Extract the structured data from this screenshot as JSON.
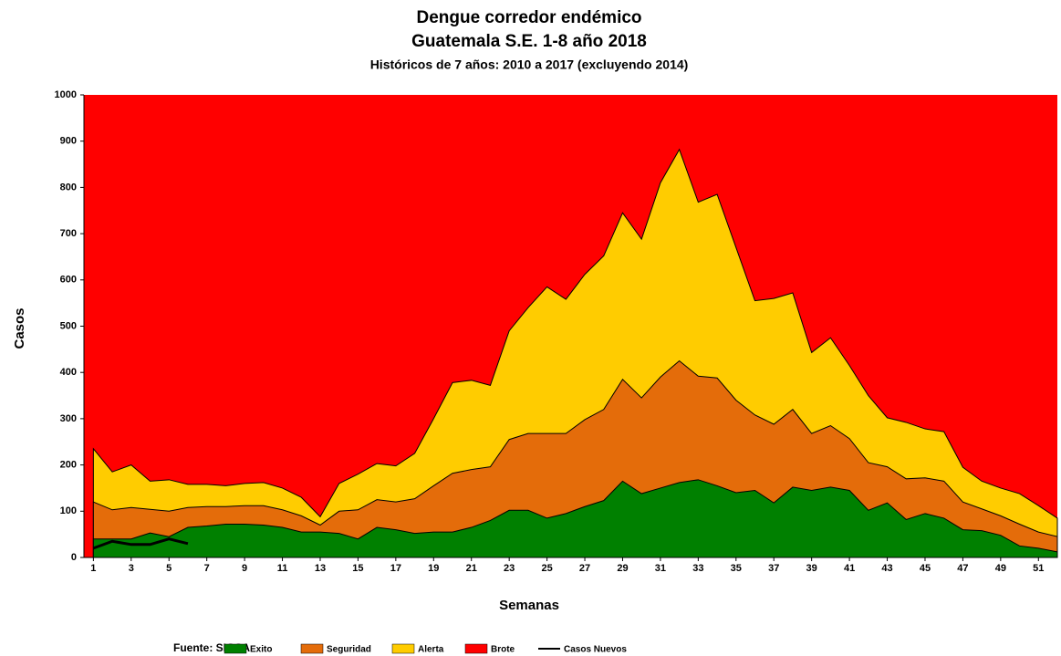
{
  "chart_data": {
    "type": "area",
    "title": "Dengue corredor endémico",
    "subtitle": "Guatemala S.E. 1-8 año 2018",
    "subtitle2": "Históricos de 7 años: 2010 a 2017 (excluyendo 2014)",
    "ylabel": "Casos",
    "xlabel": "Semanas",
    "source": "Fuente: SIGSA",
    "x": [
      1,
      2,
      3,
      4,
      5,
      6,
      7,
      8,
      9,
      10,
      11,
      12,
      13,
      14,
      15,
      16,
      17,
      18,
      19,
      20,
      21,
      22,
      23,
      24,
      25,
      26,
      27,
      28,
      29,
      30,
      31,
      32,
      33,
      34,
      35,
      36,
      37,
      38,
      39,
      40,
      41,
      42,
      43,
      44,
      45,
      46,
      47,
      48,
      49,
      50,
      51,
      52
    ],
    "xlim": [
      0.5,
      52
    ],
    "xticks": [
      1,
      3,
      5,
      7,
      9,
      11,
      13,
      15,
      17,
      19,
      21,
      23,
      25,
      27,
      29,
      31,
      33,
      35,
      37,
      39,
      41,
      43,
      45,
      47,
      49,
      51
    ],
    "ylim": [
      0,
      1000
    ],
    "yticks": [
      0,
      100,
      200,
      300,
      400,
      500,
      600,
      700,
      800,
      900,
      1000
    ],
    "background_series": {
      "name": "Brote",
      "color": "#ff0000"
    },
    "series": [
      {
        "name": "Alerta",
        "color": "#ffcc00",
        "values": [
          235,
          185,
          200,
          165,
          168,
          158,
          158,
          155,
          160,
          162,
          150,
          130,
          88,
          160,
          180,
          203,
          198,
          225,
          300,
          378,
          383,
          372,
          490,
          540,
          585,
          558,
          612,
          652,
          745,
          688,
          810,
          882,
          768,
          785,
          670,
          555,
          560,
          572,
          443,
          475,
          415,
          350,
          302,
          292,
          278,
          272,
          195,
          165,
          150,
          138,
          112,
          85
        ]
      },
      {
        "name": "Seguridad",
        "color": "#e46c0a",
        "values": [
          120,
          103,
          108,
          104,
          100,
          108,
          110,
          110,
          112,
          112,
          103,
          90,
          70,
          100,
          103,
          125,
          120,
          127,
          155,
          182,
          190,
          196,
          255,
          268,
          268,
          268,
          298,
          320,
          385,
          345,
          390,
          425,
          392,
          388,
          340,
          308,
          288,
          320,
          268,
          285,
          257,
          205,
          196,
          170,
          172,
          165,
          120,
          105,
          90,
          72,
          55,
          45
        ]
      },
      {
        "name": "Exito",
        "color": "#008000",
        "values": [
          40,
          40,
          40,
          53,
          45,
          65,
          68,
          72,
          72,
          70,
          65,
          55,
          55,
          52,
          40,
          65,
          60,
          52,
          55,
          55,
          65,
          80,
          102,
          102,
          85,
          95,
          110,
          123,
          165,
          138,
          150,
          162,
          168,
          155,
          140,
          145,
          118,
          152,
          145,
          152,
          145,
          102,
          118,
          82,
          95,
          85,
          60,
          58,
          48,
          25,
          20,
          12
        ]
      }
    ],
    "line_series": {
      "name": "Casos Nuevos",
      "color": "#000000",
      "x": [
        1,
        2,
        3,
        4,
        5,
        6
      ],
      "values": [
        20,
        35,
        28,
        28,
        40,
        30
      ]
    },
    "legend": "bottom"
  }
}
